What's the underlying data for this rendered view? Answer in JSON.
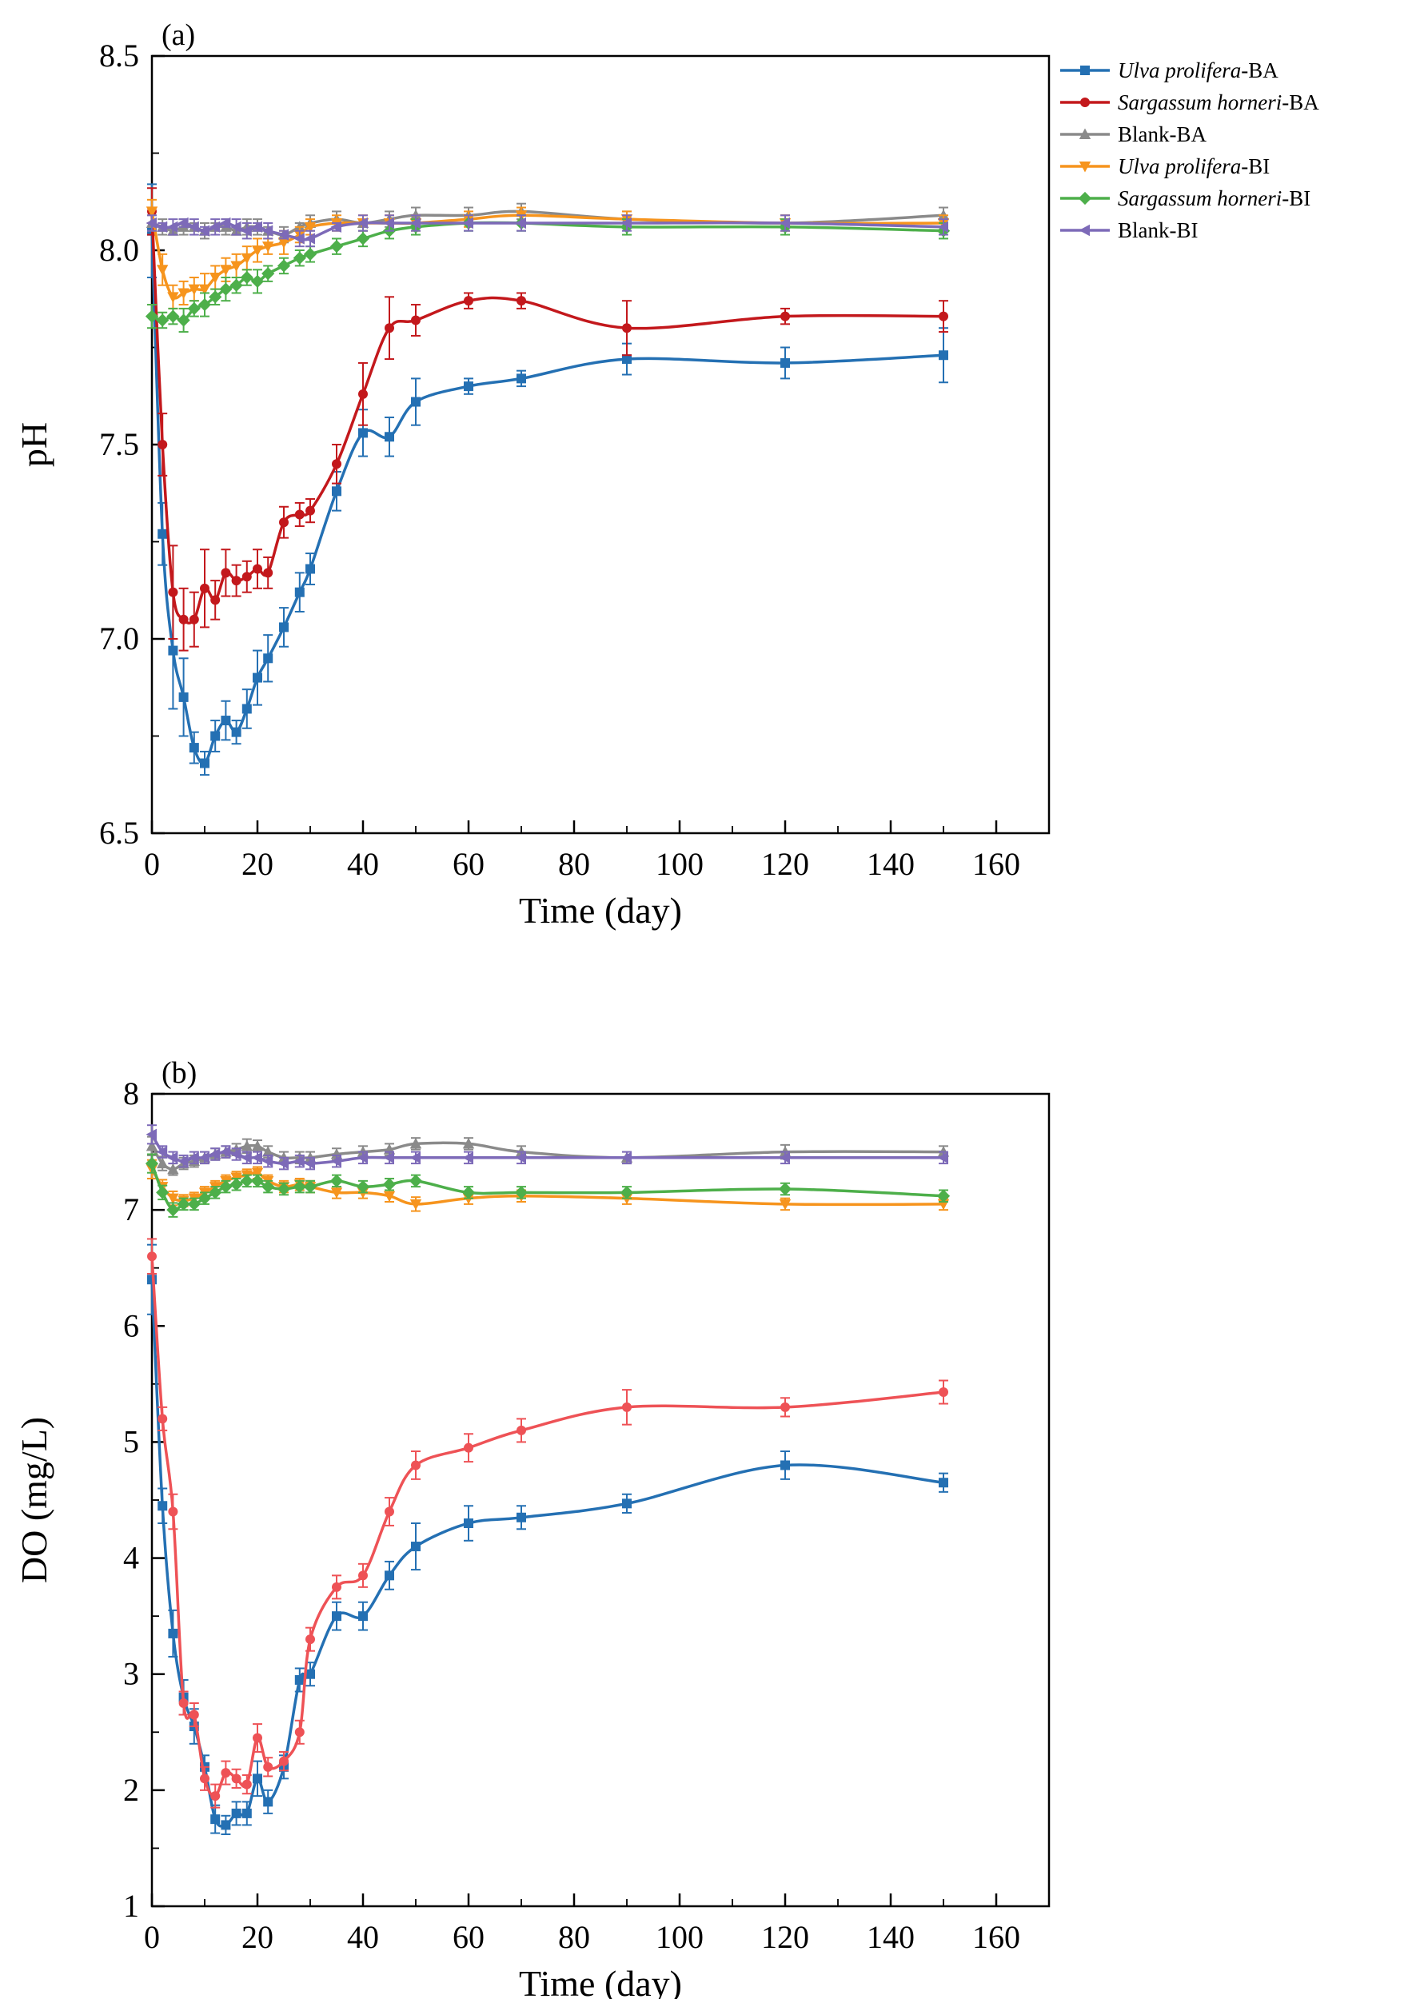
{
  "figure": {
    "background": "#ffffff"
  },
  "chart_data": [
    {
      "type": "line",
      "panel_label": "(a)",
      "xlabel": "Time (day)",
      "ylabel": "pH",
      "xlim": [
        0,
        170
      ],
      "ylim": [
        6.5,
        8.5
      ],
      "grid": false,
      "show_legend": true,
      "legend_position": "outside-right-top",
      "x_ticks": {
        "values": [
          0,
          20,
          40,
          60,
          80,
          100,
          120,
          140,
          160
        ],
        "labels": [
          "0",
          "20",
          "40",
          "60",
          "80",
          "100",
          "120",
          "140",
          "160"
        ]
      },
      "x_minor_step": 10,
      "y_ticks": {
        "values": [
          6.5,
          7.0,
          7.5,
          8.0,
          8.5
        ],
        "labels": [
          "6.5",
          "7.0",
          "7.5",
          "8.0",
          "8.5"
        ]
      },
      "y_minor_step": 0.25,
      "x": [
        0,
        2,
        4,
        6,
        8,
        10,
        12,
        14,
        16,
        18,
        20,
        22,
        25,
        28,
        30,
        35,
        40,
        45,
        50,
        60,
        70,
        90,
        120,
        150
      ],
      "series": [
        {
          "name_italic": "Ulva prolifera",
          "name_rest": "-BA",
          "color": "#2470b3",
          "marker": "square",
          "y": [
            8.05,
            7.27,
            6.97,
            6.85,
            6.72,
            6.68,
            6.75,
            6.79,
            6.76,
            6.82,
            6.9,
            6.95,
            7.03,
            7.12,
            7.18,
            7.38,
            7.53,
            7.52,
            7.61,
            7.65,
            7.67,
            7.72,
            7.71,
            7.73
          ],
          "yerr": [
            0.12,
            0.08,
            0.15,
            0.1,
            0.04,
            0.03,
            0.04,
            0.05,
            0.03,
            0.05,
            0.07,
            0.06,
            0.05,
            0.05,
            0.04,
            0.05,
            0.06,
            0.05,
            0.06,
            0.02,
            0.02,
            0.04,
            0.04,
            0.07
          ]
        },
        {
          "name_italic": "Sargassum horneri",
          "name_rest": "-BA",
          "color": "#c3181c",
          "marker": "circle",
          "y": [
            8.1,
            7.5,
            7.12,
            7.05,
            7.05,
            7.13,
            7.1,
            7.17,
            7.15,
            7.16,
            7.18,
            7.17,
            7.3,
            7.32,
            7.33,
            7.45,
            7.63,
            7.8,
            7.82,
            7.87,
            7.87,
            7.8,
            7.83,
            7.83
          ],
          "yerr": [
            0.06,
            0.08,
            0.12,
            0.08,
            0.07,
            0.1,
            0.05,
            0.06,
            0.04,
            0.04,
            0.05,
            0.04,
            0.04,
            0.03,
            0.03,
            0.05,
            0.08,
            0.08,
            0.04,
            0.02,
            0.02,
            0.07,
            0.02,
            0.04
          ]
        },
        {
          "name_italic": "",
          "name_rest": "Blank-BA",
          "color": "#8a8a8a",
          "marker": "triangle-up",
          "y": [
            8.07,
            8.06,
            8.05,
            8.06,
            8.06,
            8.05,
            8.06,
            8.06,
            8.05,
            8.06,
            8.06,
            8.05,
            8.04,
            8.06,
            8.07,
            8.08,
            8.07,
            8.08,
            8.09,
            8.09,
            8.1,
            8.08,
            8.07,
            8.09
          ],
          "yerr": [
            0.02,
            0.02,
            0.01,
            0.02,
            0.01,
            0.02,
            0.01,
            0.02,
            0.01,
            0.02,
            0.02,
            0.01,
            0.02,
            0.01,
            0.02,
            0.02,
            0.01,
            0.02,
            0.02,
            0.02,
            0.02,
            0.02,
            0.02,
            0.02
          ]
        },
        {
          "name_italic": "Ulva prolifera",
          "name_rest": "-BI",
          "color": "#f6941d",
          "marker": "triangle-down",
          "y": [
            8.1,
            7.95,
            7.88,
            7.89,
            7.9,
            7.9,
            7.93,
            7.95,
            7.96,
            7.98,
            8.0,
            8.01,
            8.02,
            8.04,
            8.06,
            8.07,
            8.07,
            8.07,
            8.07,
            8.08,
            8.09,
            8.08,
            8.07,
            8.07
          ],
          "yerr": [
            0.03,
            0.04,
            0.03,
            0.03,
            0.03,
            0.04,
            0.03,
            0.03,
            0.03,
            0.03,
            0.03,
            0.02,
            0.03,
            0.02,
            0.02,
            0.02,
            0.02,
            0.02,
            0.02,
            0.02,
            0.02,
            0.02,
            0.02,
            0.02
          ]
        },
        {
          "name_italic": "Sargassum horneri",
          "name_rest": "-BI",
          "color": "#4daf4a",
          "marker": "diamond",
          "y": [
            7.83,
            7.82,
            7.83,
            7.82,
            7.85,
            7.86,
            7.88,
            7.9,
            7.91,
            7.93,
            7.92,
            7.94,
            7.96,
            7.98,
            7.99,
            8.01,
            8.03,
            8.05,
            8.06,
            8.07,
            8.07,
            8.06,
            8.06,
            8.05
          ],
          "yerr": [
            0.03,
            0.02,
            0.02,
            0.03,
            0.02,
            0.03,
            0.02,
            0.03,
            0.02,
            0.02,
            0.03,
            0.02,
            0.02,
            0.02,
            0.02,
            0.02,
            0.02,
            0.02,
            0.02,
            0.02,
            0.02,
            0.02,
            0.02,
            0.02
          ]
        },
        {
          "name_italic": "",
          "name_rest": "Blank-BI",
          "color": "#7d6ab8",
          "marker": "triangle-left",
          "y": [
            8.07,
            8.06,
            8.06,
            8.07,
            8.06,
            8.05,
            8.06,
            8.07,
            8.06,
            8.05,
            8.06,
            8.05,
            8.04,
            8.03,
            8.03,
            8.06,
            8.07,
            8.07,
            8.07,
            8.07,
            8.07,
            8.07,
            8.07,
            8.06
          ],
          "yerr": [
            0.02,
            0.01,
            0.02,
            0.01,
            0.02,
            0.01,
            0.02,
            0.01,
            0.02,
            0.02,
            0.01,
            0.02,
            0.01,
            0.02,
            0.02,
            0.01,
            0.02,
            0.02,
            0.02,
            0.02,
            0.02,
            0.02,
            0.02,
            0.02
          ]
        }
      ]
    },
    {
      "type": "line",
      "panel_label": "(b)",
      "xlabel": "Time (day)",
      "ylabel": "DO (mg/L)",
      "xlim": [
        0,
        170
      ],
      "ylim": [
        1,
        8
      ],
      "grid": false,
      "show_legend": false,
      "legend_position": "none",
      "x_ticks": {
        "values": [
          0,
          20,
          40,
          60,
          80,
          100,
          120,
          140,
          160
        ],
        "labels": [
          "0",
          "20",
          "40",
          "60",
          "80",
          "100",
          "120",
          "140",
          "160"
        ]
      },
      "x_minor_step": 10,
      "y_ticks": {
        "values": [
          1,
          2,
          3,
          4,
          5,
          6,
          7,
          8
        ],
        "labels": [
          "1",
          "2",
          "3",
          "4",
          "5",
          "6",
          "7",
          "8"
        ]
      },
      "y_minor_step": 0.5,
      "x": [
        0,
        2,
        4,
        6,
        8,
        10,
        12,
        14,
        16,
        18,
        20,
        22,
        25,
        28,
        30,
        35,
        40,
        45,
        50,
        60,
        70,
        90,
        120,
        150
      ],
      "series": [
        {
          "name_italic": "Ulva prolifera",
          "name_rest": "-BA",
          "color": "#2470b3",
          "marker": "square",
          "y": [
            6.4,
            4.45,
            3.35,
            2.8,
            2.55,
            2.2,
            1.75,
            1.7,
            1.8,
            1.8,
            2.1,
            1.9,
            2.2,
            2.95,
            3.0,
            3.5,
            3.5,
            3.85,
            4.1,
            4.3,
            4.35,
            4.47,
            4.8,
            4.65
          ],
          "yerr": [
            0.3,
            0.15,
            0.2,
            0.15,
            0.15,
            0.1,
            0.12,
            0.08,
            0.1,
            0.1,
            0.15,
            0.1,
            0.1,
            0.1,
            0.1,
            0.12,
            0.12,
            0.12,
            0.2,
            0.15,
            0.1,
            0.08,
            0.12,
            0.08
          ]
        },
        {
          "name_italic": "Sargassum horneri",
          "name_rest": "-BA",
          "color": "#ee5256",
          "marker": "circle",
          "y": [
            6.6,
            5.2,
            4.4,
            2.75,
            2.65,
            2.1,
            1.95,
            2.15,
            2.1,
            2.05,
            2.45,
            2.2,
            2.25,
            2.5,
            3.3,
            3.75,
            3.85,
            4.4,
            4.8,
            4.95,
            5.1,
            5.3,
            5.3,
            5.43
          ],
          "yerr": [
            0.15,
            0.1,
            0.15,
            0.1,
            0.1,
            0.1,
            0.1,
            0.1,
            0.08,
            0.08,
            0.12,
            0.08,
            0.08,
            0.1,
            0.1,
            0.1,
            0.1,
            0.12,
            0.12,
            0.12,
            0.1,
            0.15,
            0.08,
            0.1
          ]
        },
        {
          "name_italic": "",
          "name_rest": "Blank-BA",
          "color": "#8a8a8a",
          "marker": "triangle-up",
          "y": [
            7.55,
            7.4,
            7.35,
            7.4,
            7.42,
            7.45,
            7.48,
            7.5,
            7.52,
            7.55,
            7.55,
            7.5,
            7.45,
            7.45,
            7.45,
            7.48,
            7.5,
            7.52,
            7.57,
            7.57,
            7.5,
            7.45,
            7.5,
            7.5
          ],
          "yerr": [
            0.08,
            0.06,
            0.05,
            0.05,
            0.05,
            0.05,
            0.05,
            0.05,
            0.05,
            0.06,
            0.05,
            0.05,
            0.05,
            0.05,
            0.05,
            0.05,
            0.05,
            0.05,
            0.05,
            0.05,
            0.05,
            0.05,
            0.06,
            0.05
          ]
        },
        {
          "name_italic": "Ulva prolifera",
          "name_rest": "-BI",
          "color": "#f6941d",
          "marker": "triangle-down",
          "y": [
            7.35,
            7.2,
            7.1,
            7.08,
            7.1,
            7.15,
            7.2,
            7.25,
            7.28,
            7.3,
            7.32,
            7.25,
            7.2,
            7.22,
            7.2,
            7.15,
            7.15,
            7.12,
            7.05,
            7.1,
            7.12,
            7.1,
            7.05,
            7.05
          ],
          "yerr": [
            0.08,
            0.06,
            0.06,
            0.05,
            0.05,
            0.05,
            0.05,
            0.05,
            0.05,
            0.05,
            0.05,
            0.05,
            0.05,
            0.05,
            0.05,
            0.05,
            0.05,
            0.05,
            0.06,
            0.05,
            0.05,
            0.05,
            0.05,
            0.05
          ]
        },
        {
          "name_italic": "Sargassum horneri",
          "name_rest": "-BI",
          "color": "#4daf4a",
          "marker": "diamond",
          "y": [
            7.4,
            7.15,
            7.0,
            7.05,
            7.05,
            7.1,
            7.15,
            7.2,
            7.22,
            7.25,
            7.25,
            7.2,
            7.18,
            7.2,
            7.2,
            7.25,
            7.2,
            7.22,
            7.25,
            7.15,
            7.15,
            7.15,
            7.18,
            7.12
          ],
          "yerr": [
            0.08,
            0.06,
            0.06,
            0.05,
            0.05,
            0.05,
            0.05,
            0.05,
            0.05,
            0.05,
            0.05,
            0.05,
            0.05,
            0.05,
            0.05,
            0.05,
            0.05,
            0.05,
            0.05,
            0.05,
            0.05,
            0.05,
            0.05,
            0.05
          ]
        },
        {
          "name_italic": "",
          "name_rest": "Blank-BI",
          "color": "#7d6ab8",
          "marker": "triangle-left",
          "y": [
            7.65,
            7.5,
            7.45,
            7.42,
            7.45,
            7.45,
            7.48,
            7.5,
            7.48,
            7.45,
            7.45,
            7.42,
            7.4,
            7.42,
            7.4,
            7.42,
            7.45,
            7.45,
            7.45,
            7.45,
            7.45,
            7.45,
            7.45,
            7.45
          ],
          "yerr": [
            0.08,
            0.05,
            0.05,
            0.05,
            0.05,
            0.05,
            0.05,
            0.05,
            0.05,
            0.05,
            0.05,
            0.05,
            0.05,
            0.05,
            0.05,
            0.05,
            0.05,
            0.05,
            0.05,
            0.05,
            0.05,
            0.05,
            0.05,
            0.05
          ]
        }
      ]
    }
  ]
}
